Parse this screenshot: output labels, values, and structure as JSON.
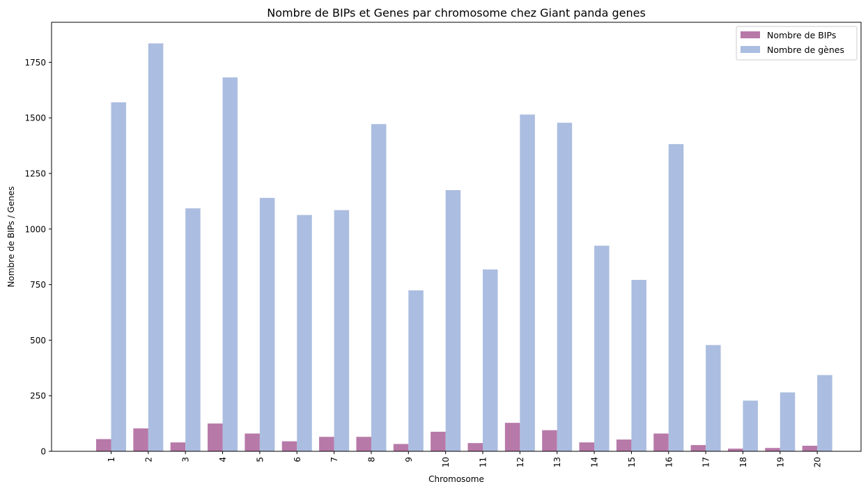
{
  "chart_data": {
    "type": "bar",
    "title": "Nombre de BIPs et Genes par chromosome chez Giant panda genes",
    "xlabel": "Chromosome",
    "ylabel": "Nombre de BIPs / Genes",
    "categories": [
      "1",
      "2",
      "3",
      "4",
      "5",
      "6",
      "7",
      "8",
      "9",
      "10",
      "11",
      "12",
      "13",
      "14",
      "15",
      "16",
      "17",
      "18",
      "19",
      "20"
    ],
    "ylim": [
      0,
      1930
    ],
    "yticks": [
      0,
      250,
      500,
      750,
      1000,
      1250,
      1500,
      1750
    ],
    "ytick_labels": [
      "0",
      "250",
      "500",
      "750",
      "1000",
      "1250",
      "1500",
      "1750"
    ],
    "grid": false,
    "legend_position": "top-right",
    "series": [
      {
        "name": "Nombre de BIPs",
        "color": "#b779a8",
        "values": [
          55,
          103,
          40,
          125,
          80,
          45,
          65,
          65,
          33,
          88,
          37,
          128,
          95,
          40,
          53,
          80,
          28,
          12,
          15,
          25
        ]
      },
      {
        "name": "Nombre de gènes",
        "color": "#abbde0",
        "values": [
          1570,
          1835,
          1093,
          1682,
          1140,
          1063,
          1085,
          1472,
          724,
          1175,
          818,
          1515,
          1478,
          925,
          771,
          1382,
          478,
          228,
          265,
          343
        ]
      }
    ]
  }
}
